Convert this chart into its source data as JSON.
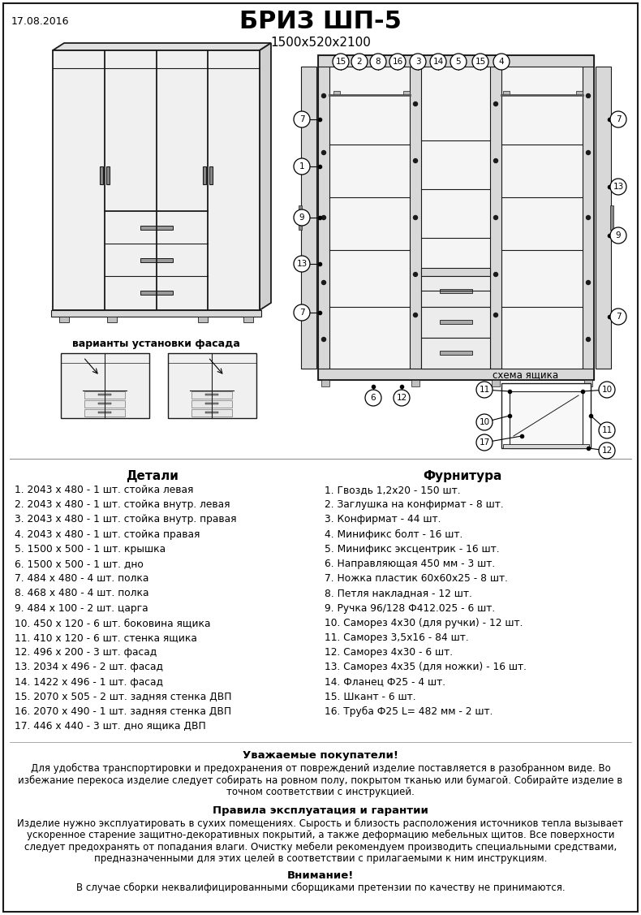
{
  "title": "БРИЗ ШП-5",
  "subtitle": "1500x520x2100",
  "date": "17.08.2016",
  "bg_color": "#ffffff",
  "details_title": "Детали",
  "details": [
    "1. 2043 х 480 - 1 шт. стойка левая",
    "2. 2043 х 480 - 1 шт. стойка внутр. левая",
    "3. 2043 х 480 - 1 шт. стойка внутр. правая",
    "4. 2043 х 480 - 1 шт. стойка правая",
    "5. 1500 х 500 - 1 шт. крышка",
    "6. 1500 х 500 - 1 шт. дно",
    "7. 484 х 480 - 4 шт. полка",
    "8. 468 х 480 - 4 шт. полка",
    "9. 484 х 100 - 2 шт. царга",
    "10. 450 х 120 - 6 шт. боковина ящика",
    "11. 410 х 120 - 6 шт. стенка ящика",
    "12. 496 х 200 - 3 шт. фасад",
    "13. 2034 х 496 - 2 шт. фасад",
    "14. 1422 х 496 - 1 шт. фасад",
    "15. 2070 х 505 - 2 шт. задняя стенка ДВП",
    "16. 2070 х 490 - 1 шт. задняя стенка ДВП",
    "17. 446 х 440 - 3 шт. дно ящика ДВП"
  ],
  "hardware_title": "Фурнитура",
  "hardware": [
    "1. Гвоздь 1,2х20 - 150 шт.",
    "2. Заглушка на конфирмат - 8 шт.",
    "3. Конфирмат - 44 шт.",
    "4. Минификс болт - 16 шт.",
    "5. Минификс эксцентрик - 16 шт.",
    "6. Направляющая 450 мм - 3 шт.",
    "7. Ножка пластик 60х60х25 - 8 шт.",
    "8. Петля накладная - 12 шт.",
    "9. Ручка 96/128 Ф412.025 - 6 шт.",
    "10. Саморез 4х30 (для ручки) - 12 шт.",
    "11. Саморез 3,5х16 - 84 шт.",
    "12. Саморез 4х30 - 6 шт.",
    "13. Саморез 4х35 (для ножки) - 16 шт.",
    "14. Фланец Ф25 - 4 шт.",
    "15. Шкант - 6 шт.",
    "16. Труба Ф25 L= 482 мм - 2 шт."
  ],
  "variants_label": "варианты установки фасада",
  "schema_label": "схема ящика",
  "notice_title": "Уважаемые покупатели!",
  "notice_text1": "Для удобства транспортировки и предохранения от повреждений изделие поставляется в разобранном виде. Во",
  "notice_text2": "избежание перекоса изделие следует собирать на ровном полу, покрытом тканью или бумагой. Собирайте изделие в",
  "notice_text3": "точном соответствии с инструкцией.",
  "rules_title": "Правила эксплуатация и гарантии",
  "rules_text1": "Изделие нужно эксплуатировать в сухих помещениях. Сырость и близость расположения источников тепла вызывает",
  "rules_text2": "ускоренное старение защитно-декоративных покрытий, а также деформацию мебельных щитов. Все поверхности",
  "rules_text3": "следует предохранять от попадания влаги. Очистку мебели рекомендуем производить специальными средствами,",
  "rules_text4": "предназначенными для этих целей в соответствии с прилагаемыми к ним инструкциям.",
  "warning_title": "Внимание!",
  "warning_text": "В случае сборки неквалифицированными сборщиками претензии по качеству не принимаются."
}
